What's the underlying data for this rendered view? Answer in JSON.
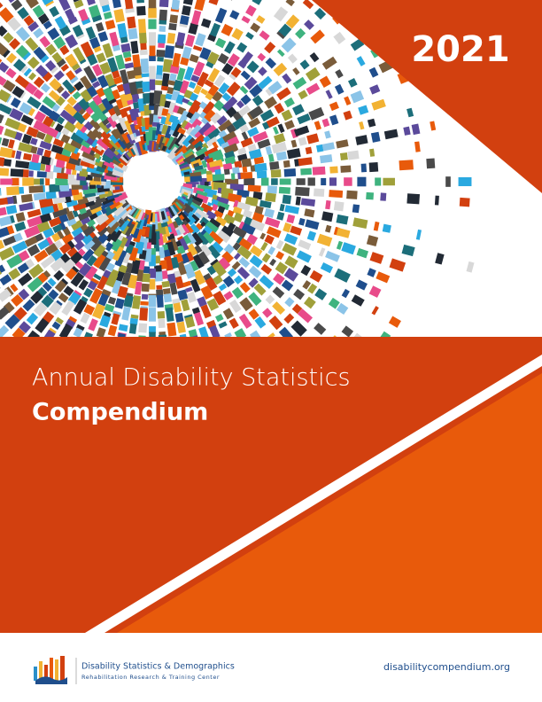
{
  "cover": {
    "year": "2021",
    "title_line1": "Annual Disability Statistics",
    "title_line2": "Compendium"
  },
  "footer": {
    "org_name": "Disability Statistics & Demographics",
    "org_subtitle": "Rehabilitation Research & Training Center",
    "url": "disabilitycompendium.org"
  }
}
